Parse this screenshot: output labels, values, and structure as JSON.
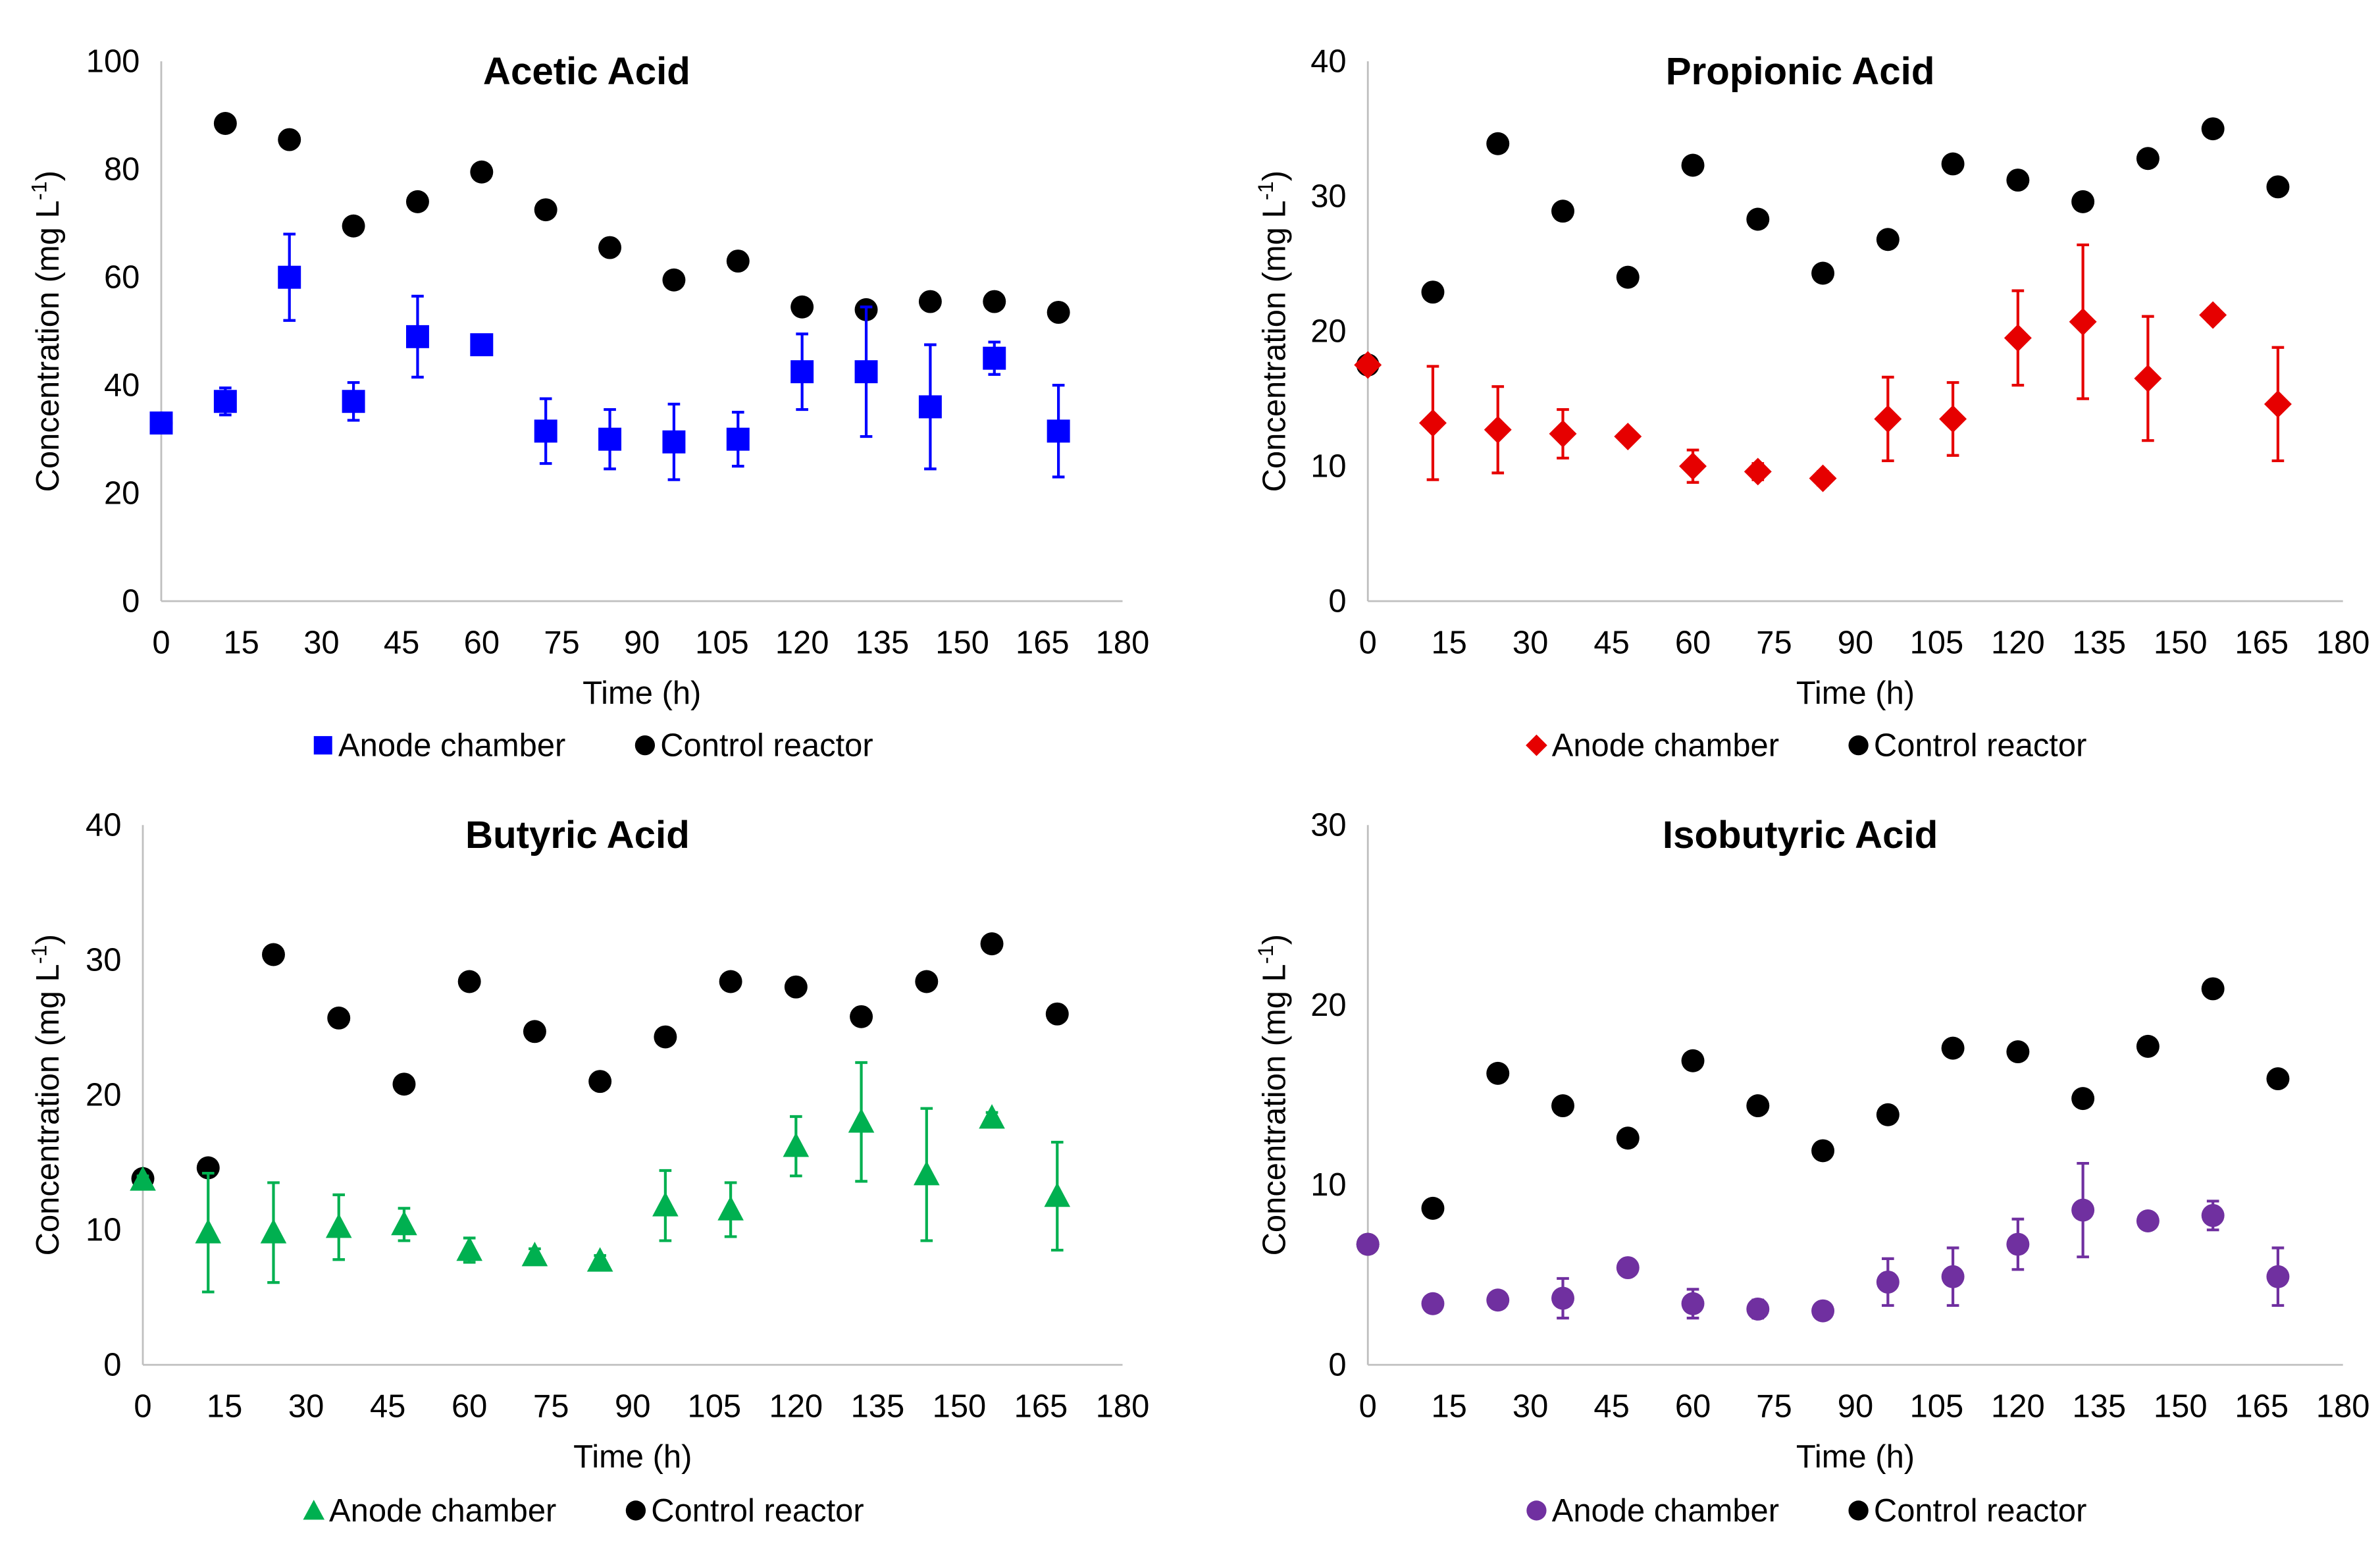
{
  "colors": {
    "control": "#000000",
    "axis": "#bfbfbf"
  },
  "chart_data": [
    {
      "type": "scatter",
      "title": "Acetic Acid",
      "xlabel": "Time (h)",
      "ylabel": "Concentration (mg L-1)",
      "xlim": [
        0,
        180
      ],
      "ylim": [
        0,
        100
      ],
      "xticks": [
        0,
        15,
        30,
        45,
        60,
        75,
        90,
        105,
        120,
        135,
        150,
        165,
        180
      ],
      "yticks": [
        0,
        20,
        40,
        60,
        80,
        100
      ],
      "legend_position": "bottom",
      "series": [
        {
          "name": "Anode chamber",
          "marker": "square",
          "color": "#0000ff",
          "x": [
            0,
            12,
            24,
            36,
            48,
            60,
            72,
            84,
            96,
            108,
            120,
            132,
            144,
            156,
            168
          ],
          "y": [
            33,
            37,
            60,
            37,
            49,
            47.5,
            31.5,
            30,
            29.5,
            30,
            42.5,
            42.5,
            36,
            45,
            31.5
          ],
          "err": [
            1,
            2.5,
            8,
            3.5,
            7.5,
            1,
            6,
            5.5,
            7,
            5,
            7,
            12,
            11.5,
            3,
            8.5
          ]
        },
        {
          "name": "Control reactor",
          "marker": "circle",
          "color": "#000000",
          "x": [
            0,
            12,
            24,
            36,
            48,
            60,
            72,
            84,
            96,
            108,
            120,
            132,
            144,
            156,
            168
          ],
          "y": [
            33,
            88.5,
            85.5,
            69.5,
            74,
            79.5,
            72.5,
            65.5,
            59.5,
            63,
            54.5,
            54,
            55.5,
            55.5,
            53.5
          ]
        }
      ]
    },
    {
      "type": "scatter",
      "title": "Propionic Acid",
      "xlabel": "Time (h)",
      "ylabel": "Concentration (mg L-1)",
      "xlim": [
        0,
        180
      ],
      "ylim": [
        0,
        40
      ],
      "xticks": [
        0,
        15,
        30,
        45,
        60,
        75,
        90,
        105,
        120,
        135,
        150,
        165,
        180
      ],
      "yticks": [
        0,
        10,
        20,
        30,
        40
      ],
      "legend_position": "bottom",
      "series": [
        {
          "name": "Anode chamber",
          "marker": "diamond",
          "color": "#e60000",
          "x": [
            0,
            12,
            24,
            36,
            48,
            60,
            72,
            84,
            96,
            108,
            120,
            132,
            144,
            156,
            168
          ],
          "y": [
            17.5,
            13.2,
            12.7,
            12.4,
            12.2,
            10,
            9.6,
            9.1,
            13.5,
            13.5,
            19.5,
            20.7,
            16.5,
            21.2,
            14.6
          ],
          "err": [
            0.5,
            4.2,
            3.2,
            1.8,
            0.4,
            1.2,
            0.6,
            0.5,
            3.1,
            2.7,
            3.5,
            5.7,
            4.6,
            0.5,
            4.2
          ]
        },
        {
          "name": "Control reactor",
          "marker": "circle",
          "color": "#000000",
          "x": [
            0,
            12,
            24,
            36,
            48,
            60,
            72,
            84,
            96,
            108,
            120,
            132,
            144,
            156,
            168
          ],
          "y": [
            17.5,
            22.9,
            33.9,
            28.9,
            24,
            32.3,
            28.3,
            24.3,
            26.8,
            32.4,
            31.2,
            29.6,
            32.8,
            35,
            30.7
          ]
        }
      ]
    },
    {
      "type": "scatter",
      "title": "Butyric Acid",
      "xlabel": "Time (h)",
      "ylabel": "Concentration (mg L-1)",
      "xlim": [
        0,
        180
      ],
      "ylim": [
        0,
        40
      ],
      "xticks": [
        0,
        15,
        30,
        45,
        60,
        75,
        90,
        105,
        120,
        135,
        150,
        165,
        180
      ],
      "yticks": [
        0,
        10,
        20,
        30,
        40
      ],
      "legend_position": "bottom",
      "series": [
        {
          "name": "Anode chamber",
          "marker": "triangle",
          "color": "#00b050",
          "x": [
            0,
            12,
            24,
            36,
            48,
            60,
            72,
            84,
            96,
            108,
            120,
            132,
            144,
            156,
            168
          ],
          "y": [
            13.7,
            9.8,
            9.8,
            10.2,
            10.4,
            8.5,
            8.1,
            7.7,
            11.8,
            11.5,
            16.2,
            18,
            14.1,
            18.3,
            12.5
          ],
          "err": [
            0.3,
            4.4,
            3.7,
            2.4,
            1.2,
            0.9,
            0.5,
            0.4,
            2.6,
            2,
            2.2,
            4.4,
            4.9,
            0.4,
            4
          ]
        },
        {
          "name": "Control reactor",
          "marker": "circle",
          "color": "#000000",
          "x": [
            0,
            12,
            24,
            36,
            48,
            60,
            72,
            84,
            96,
            108,
            120,
            132,
            144,
            156,
            168
          ],
          "y": [
            13.8,
            14.6,
            30.4,
            25.7,
            20.8,
            28.4,
            24.7,
            21,
            24.3,
            28.4,
            28,
            25.8,
            28.4,
            31.2,
            26
          ]
        }
      ]
    },
    {
      "type": "scatter",
      "title": "Isobutyric  Acid",
      "xlabel": "Time (h)",
      "ylabel": "Concentration (mg L-1)",
      "xlim": [
        0,
        180
      ],
      "ylim": [
        0,
        30
      ],
      "xticks": [
        0,
        15,
        30,
        45,
        60,
        75,
        90,
        105,
        120,
        135,
        150,
        165,
        180
      ],
      "yticks": [
        0,
        10,
        20,
        30
      ],
      "legend_position": "bottom",
      "series": [
        {
          "name": "Anode chamber",
          "marker": "circle",
          "color": "#7030a0",
          "x": [
            0,
            12,
            24,
            36,
            48,
            60,
            72,
            84,
            96,
            108,
            120,
            132,
            144,
            156,
            168
          ],
          "y": [
            6.7,
            3.4,
            3.6,
            3.7,
            5.4,
            3.4,
            3.1,
            3.0,
            4.6,
            4.9,
            6.7,
            8.6,
            8.0,
            8.3,
            4.9
          ],
          "err": [
            0.2,
            0.4,
            0.3,
            1.1,
            0.3,
            0.8,
            0.5,
            0.3,
            1.3,
            1.6,
            1.4,
            2.6,
            0.3,
            0.8,
            1.6
          ]
        },
        {
          "name": "Control reactor",
          "marker": "circle",
          "color": "#000000",
          "x": [
            0,
            12,
            24,
            36,
            48,
            60,
            72,
            84,
            96,
            108,
            120,
            132,
            144,
            156,
            168
          ],
          "y": [
            6.7,
            8.7,
            16.2,
            14.4,
            12.6,
            16.9,
            14.4,
            11.9,
            13.9,
            17.6,
            17.4,
            14.8,
            17.7,
            20.9,
            15.9
          ]
        }
      ]
    }
  ]
}
